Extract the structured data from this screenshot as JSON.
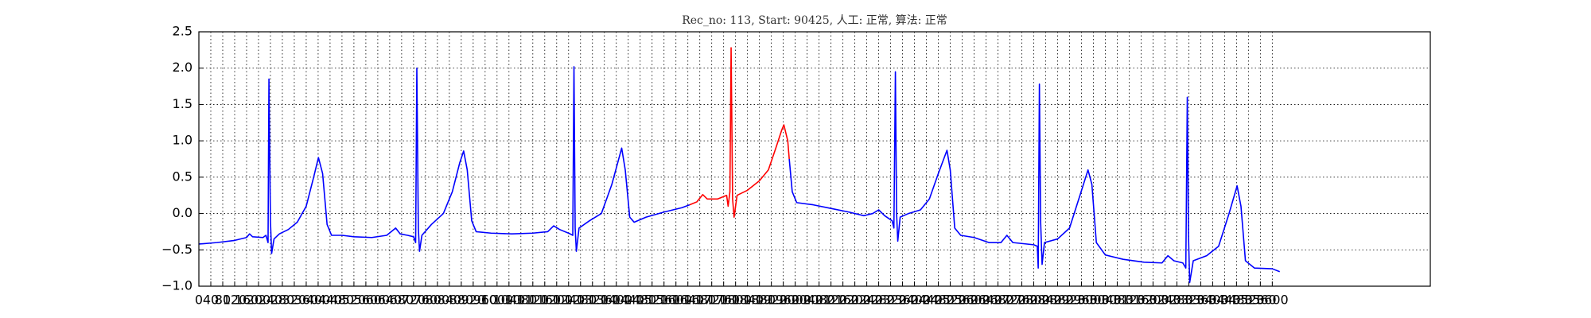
{
  "chart_data": {
    "type": "line",
    "title": "Rec_no: 113, Start: 90425, 人工: 正常, 算法: 正常",
    "x": [
      0,
      60,
      120,
      160,
      170,
      180,
      215,
      225,
      232,
      235,
      240,
      244,
      252,
      270,
      300,
      330,
      360,
      385,
      401,
      415,
      430,
      445,
      480,
      520,
      580,
      630,
      660,
      675,
      700,
      720,
      727,
      731,
      736,
      740,
      748,
      780,
      820,
      850,
      875,
      888,
      900,
      915,
      930,
      980,
      1050,
      1120,
      1170,
      1190,
      1210,
      1245,
      1254,
      1258,
      1262,
      1266,
      1275,
      1310,
      1350,
      1385,
      1418,
      1430,
      1445,
      1460,
      1500,
      1560,
      1620,
      1646,
      1670,
      1690,
      1705,
      1740,
      1770,
      1775,
      1781,
      1785,
      1790,
      1795,
      1805,
      1840,
      1880,
      1910,
      1935,
      1955,
      1962,
      1975,
      1980,
      1990,
      2005,
      2060,
      2120,
      2180,
      2230,
      2260,
      2280,
      2300,
      2325,
      2331,
      2336,
      2340,
      2344,
      2352,
      2380,
      2420,
      2450,
      2480,
      2509,
      2520,
      2535,
      2555,
      2600,
      2650,
      2690,
      2710,
      2730,
      2800,
      2812,
      2815,
      2819,
      2823,
      2828,
      2836,
      2880,
      2920,
      2955,
      2982,
      2995,
      3010,
      3040,
      3100,
      3170,
      3230,
      3250,
      3270,
      3300,
      3310,
      3315,
      3319,
      3323,
      3335,
      3380,
      3420,
      3455,
      3482,
      3495,
      3510,
      3540,
      3600,
      3625
    ],
    "series": [
      {
        "color": "#0000ff",
        "values": [
          -0.42,
          -0.4,
          -0.37,
          -0.33,
          -0.28,
          -0.32,
          -0.33,
          -0.3,
          -0.4,
          1.85,
          -0.1,
          -0.55,
          -0.35,
          -0.28,
          -0.22,
          -0.12,
          0.1,
          0.5,
          0.77,
          0.55,
          -0.15,
          -0.3,
          -0.3,
          -0.32,
          -0.33,
          -0.3,
          -0.2,
          -0.28,
          -0.3,
          -0.32,
          -0.4,
          2.0,
          -0.2,
          -0.52,
          -0.3,
          -0.15,
          0.0,
          0.3,
          0.7,
          0.86,
          0.6,
          -0.1,
          -0.25,
          -0.27,
          -0.28,
          -0.27,
          -0.25,
          -0.17,
          -0.22,
          -0.28,
          -0.3,
          2.02,
          -0.2,
          -0.52,
          -0.2,
          -0.1,
          0.0,
          0.4,
          0.9,
          0.6,
          -0.05,
          -0.12,
          -0.05,
          0.02,
          0.08,
          0.12,
          null,
          null,
          null,
          null,
          null,
          null,
          null,
          null,
          null,
          null,
          null,
          null,
          null,
          null,
          null,
          null,
          null,
          null,
          0.75,
          0.3,
          0.15,
          0.12,
          0.07,
          0.02,
          -0.03,
          0.0,
          0.05,
          -0.03,
          -0.1,
          -0.2,
          1.95,
          0.0,
          -0.38,
          -0.05,
          0.0,
          0.05,
          0.2,
          0.55,
          0.87,
          0.6,
          -0.2,
          -0.3,
          -0.33,
          -0.4,
          -0.4,
          -0.3,
          -0.4,
          -0.43,
          -0.45,
          -0.75,
          1.78,
          -0.1,
          -0.7,
          -0.4,
          -0.35,
          -0.2,
          0.25,
          0.6,
          0.4,
          -0.4,
          -0.57,
          -0.63,
          -0.67,
          -0.68,
          -0.58,
          -0.65,
          -0.68,
          -0.75,
          1.6,
          -0.3,
          -0.95,
          -0.65,
          -0.58,
          -0.45,
          0.0,
          0.38,
          0.1,
          -0.65,
          -0.75,
          -0.76,
          -0.8
        ]
      },
      {
        "color": "#ff0000",
        "values": [
          null,
          null,
          null,
          null,
          null,
          null,
          null,
          null,
          null,
          null,
          null,
          null,
          null,
          null,
          null,
          null,
          null,
          null,
          null,
          null,
          null,
          null,
          null,
          null,
          null,
          null,
          null,
          null,
          null,
          null,
          null,
          null,
          null,
          null,
          null,
          null,
          null,
          null,
          null,
          null,
          null,
          null,
          null,
          null,
          null,
          null,
          null,
          null,
          null,
          null,
          null,
          null,
          null,
          null,
          null,
          null,
          null,
          null,
          null,
          null,
          null,
          null,
          null,
          null,
          null,
          0.12,
          0.16,
          0.26,
          0.2,
          0.2,
          0.25,
          0.1,
          0.3,
          2.28,
          0.2,
          -0.05,
          0.25,
          0.32,
          0.45,
          0.6,
          0.9,
          1.15,
          1.22,
          1.0,
          0.75,
          null,
          null,
          null,
          null,
          null,
          null,
          null,
          null,
          null,
          null,
          null,
          null,
          null,
          null,
          null,
          null,
          null,
          null,
          null,
          null,
          null,
          null,
          null,
          null,
          null,
          null,
          null,
          null,
          null,
          null,
          null,
          null,
          null,
          null,
          null,
          null,
          null,
          null,
          null,
          null,
          null,
          null,
          null,
          null,
          null,
          null,
          null,
          null,
          null,
          null,
          null,
          null,
          null,
          null,
          null,
          null,
          null,
          null,
          null,
          null,
          null,
          null
        ]
      }
    ],
    "xlim": [
      0,
      4130
    ],
    "xticks": [
      0,
      40,
      80,
      120,
      160,
      200,
      240,
      280,
      320,
      360,
      400,
      440,
      480,
      520,
      560,
      600,
      640,
      680,
      720,
      760,
      800,
      840,
      880,
      920,
      960,
      1000,
      1040,
      1080,
      1120,
      1160,
      1200,
      1240,
      1280,
      1320,
      1360,
      1400,
      1440,
      1480,
      1520,
      1560,
      1600,
      1640,
      1680,
      1720,
      1760,
      1800,
      1840,
      1880,
      1920,
      1960,
      2000,
      2040,
      2080,
      2120,
      2160,
      2200,
      2240,
      2280,
      2320,
      2360,
      2400,
      2440,
      2480,
      2520,
      2560,
      2600,
      2640,
      2680,
      2720,
      2760,
      2800,
      2840,
      2880,
      2920,
      2960,
      3000,
      3040,
      3080,
      3120,
      3160,
      3200,
      3240,
      3280,
      3320,
      3360,
      3400,
      3440,
      3480,
      3520,
      3560,
      3600
    ],
    "ylim": [
      -1.0,
      2.5
    ],
    "yticks": [
      {
        "value": -1.0,
        "label": "−1.0"
      },
      {
        "value": -0.5,
        "label": "−0.5"
      },
      {
        "value": 0.0,
        "label": "0.0"
      },
      0.5,
      {
        "value": 1.0,
        "label": "1.0"
      },
      1.5,
      {
        "value": 2.0,
        "label": "2.0"
      },
      2.5
    ],
    "grid": true
  }
}
